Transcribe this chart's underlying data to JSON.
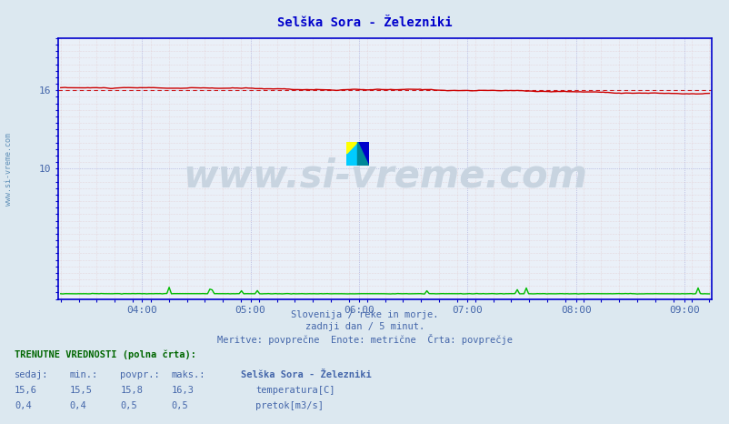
{
  "title": "Selška Sora - Železniki",
  "bg_color": "#dce8f0",
  "plot_bg_color": "#eaf0f8",
  "x_tick_labels": [
    "04:00",
    "05:00",
    "06:00",
    "07:00",
    "08:00",
    "09:00"
  ],
  "y_min": 0,
  "y_max": 20,
  "y_ticks": [
    10,
    16
  ],
  "temp_color": "#cc0000",
  "pretok_color": "#00bb00",
  "dashed_line_color": "#cc0000",
  "watermark_text": "www.si-vreme.com",
  "watermark_color": "#c8d4e0",
  "footer_line1": "Slovenija / reke in morje.",
  "footer_line2": "zadnji dan / 5 minut.",
  "footer_line3": "Meritve: povprečne  Enote: metrične  Črta: povprečje",
  "footer_color": "#4466aa",
  "table_header": "TRENUTNE VREDNOSTI (polna črta):",
  "col_headers": [
    "sedaj:",
    "min.:",
    "povpr.:",
    "maks.:"
  ],
  "row1_vals": [
    "15,6",
    "15,5",
    "15,8",
    "16,3"
  ],
  "row2_vals": [
    "0,4",
    "0,4",
    "0,5",
    "0,5"
  ],
  "legend_title": "Selška Sora - Železniki",
  "legend_temp": "temperatura[C]",
  "legend_pretok": "pretok[m3/s]",
  "axis_color": "#0000cc",
  "sidebar_text_color": "#6090b8",
  "n_points": 288
}
